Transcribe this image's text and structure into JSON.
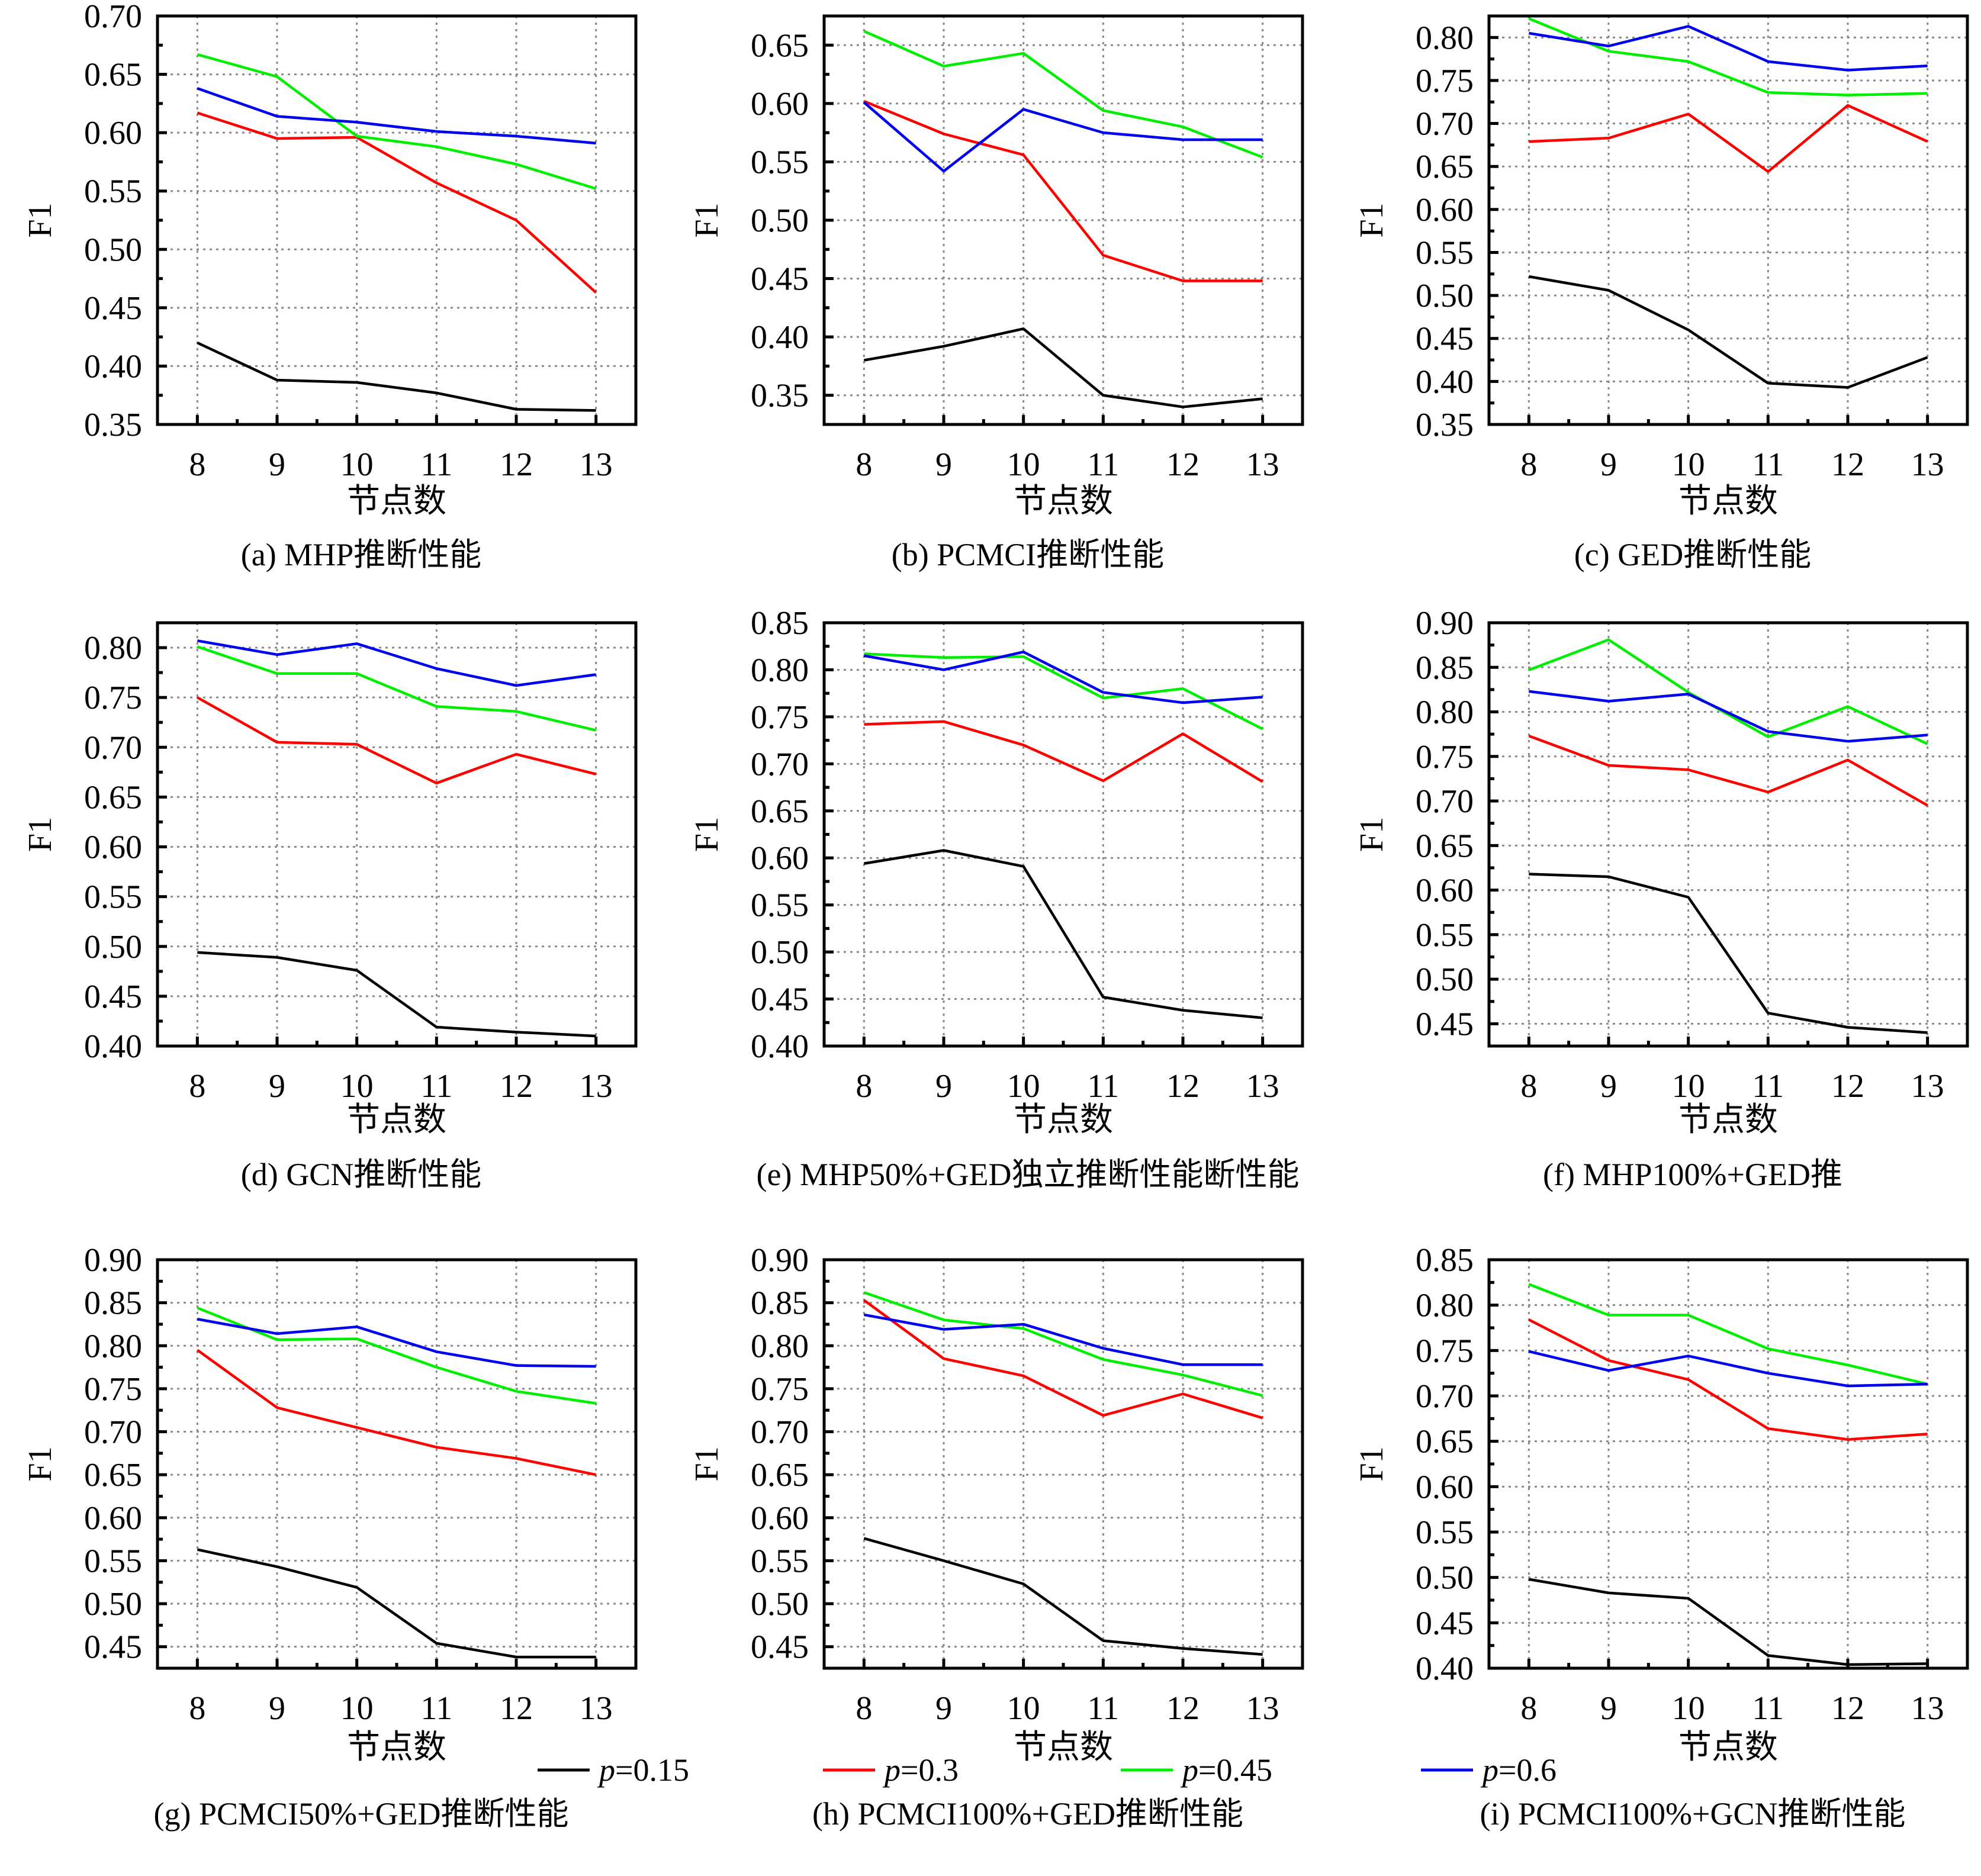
{
  "figure": {
    "legend": [
      {
        "label_var": "p",
        "label_value": "=0.15",
        "color": "#000000"
      },
      {
        "label_var": "p",
        "label_value": "=0.3",
        "color": "#ff0000"
      },
      {
        "label_var": "p",
        "label_value": "=0.45",
        "color": "#00ee00"
      },
      {
        "label_var": "p",
        "label_value": "=0.6",
        "color": "#0000ee"
      }
    ]
  },
  "chart_data": [
    {
      "id": "a",
      "type": "line",
      "caption": "(a) MHP推断性能",
      "xlabel": "节点数",
      "ylabel": "F1",
      "x": [
        8,
        9,
        10,
        11,
        12,
        13
      ],
      "xlim": [
        7.5,
        13.5
      ],
      "ylim": [
        0.35,
        0.7
      ],
      "yticks": [
        "0.35",
        "0.40",
        "0.45",
        "0.50",
        "0.55",
        "0.60",
        "0.65",
        "0.70"
      ],
      "grid": true,
      "series": [
        {
          "name": "p=0.15",
          "color": "#000000",
          "values": [
            0.42,
            0.388,
            0.386,
            0.377,
            0.363,
            0.362
          ]
        },
        {
          "name": "p=0.3",
          "color": "#ff0000",
          "values": [
            0.617,
            0.595,
            0.596,
            0.557,
            0.525,
            0.463
          ]
        },
        {
          "name": "p=0.45",
          "color": "#00ee00",
          "values": [
            0.667,
            0.648,
            0.597,
            0.588,
            0.573,
            0.552
          ]
        },
        {
          "name": "p=0.6",
          "color": "#0000ee",
          "values": [
            0.638,
            0.614,
            0.609,
            0.601,
            0.597,
            0.591
          ]
        }
      ]
    },
    {
      "id": "b",
      "type": "line",
      "caption": "(b) PCMCI推断性能",
      "xlabel": "节点数",
      "ylabel": "F1",
      "x": [
        8,
        9,
        10,
        11,
        12,
        13
      ],
      "xlim": [
        7.5,
        13.5
      ],
      "ylim": [
        0.325,
        0.675
      ],
      "yticks": [
        "0.35",
        "0.40",
        "0.45",
        "0.50",
        "0.55",
        "0.60",
        "0.65"
      ],
      "grid": true,
      "series": [
        {
          "name": "p=0.15",
          "color": "#000000",
          "values": [
            0.38,
            0.392,
            0.407,
            0.35,
            0.34,
            0.347
          ]
        },
        {
          "name": "p=0.3",
          "color": "#ff0000",
          "values": [
            0.602,
            0.574,
            0.556,
            0.47,
            0.448,
            0.448
          ]
        },
        {
          "name": "p=0.45",
          "color": "#00ee00",
          "values": [
            0.662,
            0.632,
            0.643,
            0.594,
            0.58,
            0.554
          ]
        },
        {
          "name": "p=0.6",
          "color": "#0000ee",
          "values": [
            0.601,
            0.542,
            0.595,
            0.575,
            0.569,
            0.569
          ]
        }
      ]
    },
    {
      "id": "c",
      "type": "line",
      "caption": "(c) GED推断性能",
      "xlabel": "节点数",
      "ylabel": "F1",
      "x": [
        8,
        9,
        10,
        11,
        12,
        13
      ],
      "xlim": [
        7.5,
        13.5
      ],
      "ylim": [
        0.35,
        0.825
      ],
      "yticks": [
        "0.35",
        "0.40",
        "0.45",
        "0.50",
        "0.55",
        "0.60",
        "0.65",
        "0.70",
        "0.75",
        "0.80"
      ],
      "grid": true,
      "series": [
        {
          "name": "p=0.15",
          "color": "#000000",
          "values": [
            0.522,
            0.506,
            0.46,
            0.398,
            0.393,
            0.428
          ]
        },
        {
          "name": "p=0.3",
          "color": "#ff0000",
          "values": [
            0.679,
            0.683,
            0.711,
            0.644,
            0.721,
            0.679
          ]
        },
        {
          "name": "p=0.45",
          "color": "#00ee00",
          "values": [
            0.822,
            0.784,
            0.772,
            0.736,
            0.733,
            0.735
          ]
        },
        {
          "name": "p=0.6",
          "color": "#0000ee",
          "values": [
            0.805,
            0.79,
            0.813,
            0.772,
            0.762,
            0.767
          ]
        }
      ]
    },
    {
      "id": "d",
      "type": "line",
      "caption": "(d) GCN推断性能",
      "xlabel": "节点数",
      "ylabel": "F1",
      "x": [
        8,
        9,
        10,
        11,
        12,
        13
      ],
      "xlim": [
        7.5,
        13.5
      ],
      "ylim": [
        0.4,
        0.825
      ],
      "yticks": [
        "0.40",
        "0.45",
        "0.50",
        "0.55",
        "0.60",
        "0.65",
        "0.70",
        "0.75",
        "0.80"
      ],
      "grid": true,
      "series": [
        {
          "name": "p=0.15",
          "color": "#000000",
          "values": [
            0.494,
            0.489,
            0.476,
            0.419,
            0.414,
            0.41
          ]
        },
        {
          "name": "p=0.3",
          "color": "#ff0000",
          "values": [
            0.75,
            0.705,
            0.703,
            0.664,
            0.693,
            0.673
          ]
        },
        {
          "name": "p=0.45",
          "color": "#00ee00",
          "values": [
            0.801,
            0.774,
            0.774,
            0.741,
            0.736,
            0.717
          ]
        },
        {
          "name": "p=0.6",
          "color": "#0000ee",
          "values": [
            0.807,
            0.793,
            0.804,
            0.779,
            0.762,
            0.773
          ]
        }
      ]
    },
    {
      "id": "e",
      "type": "line",
      "caption": "(e) MHP50%+GED独立推断性能断性能",
      "xlabel": "节点数",
      "ylabel": "F1",
      "x": [
        8,
        9,
        10,
        11,
        12,
        13
      ],
      "xlim": [
        7.5,
        13.5
      ],
      "ylim": [
        0.4,
        0.85
      ],
      "yticks": [
        "0.40",
        "0.45",
        "0.50",
        "0.55",
        "0.60",
        "0.65",
        "0.70",
        "0.75",
        "0.80",
        "0.85"
      ],
      "grid": true,
      "series": [
        {
          "name": "p=0.15",
          "color": "#000000",
          "values": [
            0.594,
            0.608,
            0.591,
            0.452,
            0.438,
            0.43
          ]
        },
        {
          "name": "p=0.3",
          "color": "#ff0000",
          "values": [
            0.742,
            0.745,
            0.72,
            0.682,
            0.732,
            0.681
          ]
        },
        {
          "name": "p=0.45",
          "color": "#00ee00",
          "values": [
            0.817,
            0.813,
            0.814,
            0.77,
            0.78,
            0.737
          ]
        },
        {
          "name": "p=0.6",
          "color": "#0000ee",
          "values": [
            0.815,
            0.8,
            0.819,
            0.776,
            0.765,
            0.771
          ]
        }
      ]
    },
    {
      "id": "f",
      "type": "line",
      "caption": "(f) MHP100%+GED推",
      "xlabel": "节点数",
      "ylabel": "F1",
      "x": [
        8,
        9,
        10,
        11,
        12,
        13
      ],
      "xlim": [
        7.5,
        13.5
      ],
      "ylim": [
        0.425,
        0.9
      ],
      "yticks": [
        "0.45",
        "0.50",
        "0.55",
        "0.60",
        "0.65",
        "0.70",
        "0.75",
        "0.80",
        "0.85",
        "0.90"
      ],
      "grid": true,
      "series": [
        {
          "name": "p=0.15",
          "color": "#000000",
          "values": [
            0.618,
            0.615,
            0.592,
            0.462,
            0.446,
            0.44
          ]
        },
        {
          "name": "p=0.3",
          "color": "#ff0000",
          "values": [
            0.773,
            0.74,
            0.735,
            0.71,
            0.746,
            0.695
          ]
        },
        {
          "name": "p=0.45",
          "color": "#00ee00",
          "values": [
            0.847,
            0.881,
            0.822,
            0.772,
            0.806,
            0.764
          ]
        },
        {
          "name": "p=0.6",
          "color": "#0000ee",
          "values": [
            0.823,
            0.812,
            0.82,
            0.778,
            0.767,
            0.774
          ]
        }
      ]
    },
    {
      "id": "g",
      "type": "line",
      "caption": "(g) PCMCI50%+GED推断性能",
      "xlabel": "节点数",
      "ylabel": "F1",
      "x": [
        8,
        9,
        10,
        11,
        12,
        13
      ],
      "xlim": [
        7.5,
        13.5
      ],
      "ylim": [
        0.425,
        0.9
      ],
      "yticks": [
        "0.45",
        "0.50",
        "0.55",
        "0.60",
        "0.65",
        "0.70",
        "0.75",
        "0.80",
        "0.85",
        "0.90"
      ],
      "grid": true,
      "series": [
        {
          "name": "p=0.15",
          "color": "#000000",
          "values": [
            0.563,
            0.543,
            0.519,
            0.454,
            0.438,
            0.438
          ]
        },
        {
          "name": "p=0.3",
          "color": "#ff0000",
          "values": [
            0.795,
            0.728,
            0.705,
            0.682,
            0.669,
            0.65
          ]
        },
        {
          "name": "p=0.45",
          "color": "#00ee00",
          "values": [
            0.844,
            0.807,
            0.808,
            0.775,
            0.747,
            0.733
          ]
        },
        {
          "name": "p=0.6",
          "color": "#0000ee",
          "values": [
            0.831,
            0.814,
            0.822,
            0.793,
            0.777,
            0.776
          ]
        }
      ]
    },
    {
      "id": "h",
      "type": "line",
      "caption": "(h) PCMCI100%+GED推断性能",
      "xlabel": "节点数",
      "ylabel": "F1",
      "x": [
        8,
        9,
        10,
        11,
        12,
        13
      ],
      "xlim": [
        7.5,
        13.5
      ],
      "ylim": [
        0.425,
        0.9
      ],
      "yticks": [
        "0.45",
        "0.50",
        "0.55",
        "0.60",
        "0.65",
        "0.70",
        "0.75",
        "0.80",
        "0.85",
        "0.90"
      ],
      "grid": true,
      "series": [
        {
          "name": "p=0.15",
          "color": "#000000",
          "values": [
            0.576,
            0.55,
            0.523,
            0.457,
            0.448,
            0.441
          ]
        },
        {
          "name": "p=0.3",
          "color": "#ff0000",
          "values": [
            0.853,
            0.785,
            0.765,
            0.719,
            0.744,
            0.716
          ]
        },
        {
          "name": "p=0.45",
          "color": "#00ee00",
          "values": [
            0.862,
            0.83,
            0.82,
            0.784,
            0.766,
            0.742
          ]
        },
        {
          "name": "p=0.6",
          "color": "#0000ee",
          "values": [
            0.836,
            0.819,
            0.825,
            0.797,
            0.778,
            0.778
          ]
        }
      ]
    },
    {
      "id": "i",
      "type": "line",
      "caption": "(i) PCMCI100%+GCN推断性能",
      "xlabel": "节点数",
      "ylabel": "F1",
      "x": [
        8,
        9,
        10,
        11,
        12,
        13
      ],
      "xlim": [
        7.5,
        13.5
      ],
      "ylim": [
        0.4,
        0.85
      ],
      "yticks": [
        "0.40",
        "0.45",
        "0.50",
        "0.55",
        "0.60",
        "0.65",
        "0.70",
        "0.75",
        "0.80",
        "0.85"
      ],
      "grid": true,
      "series": [
        {
          "name": "p=0.15",
          "color": "#000000",
          "values": [
            0.498,
            0.483,
            0.477,
            0.414,
            0.404,
            0.405
          ]
        },
        {
          "name": "p=0.3",
          "color": "#ff0000",
          "values": [
            0.784,
            0.739,
            0.718,
            0.664,
            0.652,
            0.658
          ]
        },
        {
          "name": "p=0.45",
          "color": "#00ee00",
          "values": [
            0.823,
            0.789,
            0.789,
            0.752,
            0.734,
            0.713
          ]
        },
        {
          "name": "p=0.6",
          "color": "#0000ee",
          "values": [
            0.749,
            0.728,
            0.744,
            0.725,
            0.711,
            0.713
          ]
        }
      ]
    }
  ]
}
